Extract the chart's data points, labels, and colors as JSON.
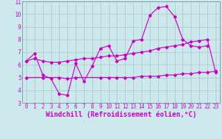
{
  "bg_color": "#cde8ec",
  "grid_color": "#aacccc",
  "line_color": "#cc00cc",
  "xlim": [
    -0.5,
    23.5
  ],
  "ylim": [
    3,
    11
  ],
  "xticks": [
    0,
    1,
    2,
    3,
    4,
    5,
    6,
    7,
    8,
    9,
    10,
    11,
    12,
    13,
    14,
    15,
    16,
    17,
    18,
    19,
    20,
    21,
    22,
    23
  ],
  "yticks": [
    3,
    4,
    5,
    6,
    7,
    8,
    9,
    10,
    11
  ],
  "xlabel": "Windchill (Refroidissement éolien,°C)",
  "tick_fontsize": 5.5,
  "xlabel_fontsize": 7,
  "lines": [
    {
      "x": [
        0,
        1,
        2,
        3,
        4,
        5,
        6,
        7,
        8,
        9,
        10,
        11,
        12,
        13,
        14,
        15,
        16,
        17,
        18,
        19,
        20,
        21,
        22
      ],
      "y": [
        6.3,
        6.9,
        5.2,
        4.9,
        3.7,
        3.6,
        6.1,
        4.7,
        5.9,
        7.3,
        7.5,
        6.3,
        6.5,
        7.9,
        8.0,
        9.9,
        10.5,
        10.6,
        9.8,
        8.0,
        7.5,
        7.4,
        7.5
      ]
    },
    {
      "x": [
        0,
        2,
        4,
        5,
        6,
        9,
        10,
        11,
        12,
        13,
        14,
        15,
        16,
        17,
        18,
        19,
        20,
        21,
        22,
        23
      ],
      "y": [
        5.0,
        5.0,
        5.0,
        4.9,
        5.0,
        5.0,
        5.0,
        5.0,
        5.0,
        5.0,
        5.1,
        5.1,
        5.1,
        5.2,
        5.2,
        5.3,
        5.3,
        5.4,
        5.4,
        5.5
      ]
    },
    {
      "x": [
        0,
        1,
        2,
        3,
        4,
        5,
        6,
        7,
        8,
        9,
        10,
        11,
        12,
        13,
        14,
        15,
        16,
        17,
        18,
        19,
        20,
        21,
        22,
        23
      ],
      "y": [
        6.3,
        6.5,
        6.3,
        6.2,
        6.2,
        6.3,
        6.4,
        6.5,
        6.5,
        6.6,
        6.7,
        6.7,
        6.8,
        6.9,
        7.0,
        7.1,
        7.3,
        7.4,
        7.5,
        7.6,
        7.8,
        7.9,
        8.0,
        5.4
      ]
    }
  ]
}
